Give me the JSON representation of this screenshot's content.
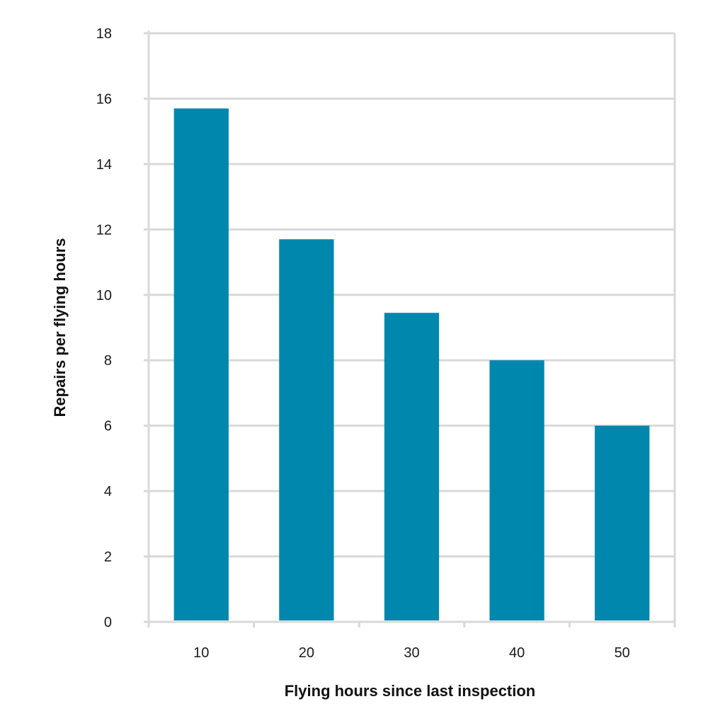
{
  "chart_data": {
    "type": "bar",
    "categories": [
      "10",
      "20",
      "30",
      "40",
      "50"
    ],
    "values": [
      15.7,
      11.7,
      9.45,
      8.0,
      6.0
    ],
    "title": "",
    "xlabel": "Flying hours since last inspection",
    "ylabel": "Repairs per flying hours",
    "ylim": [
      0,
      18
    ],
    "yticks": [
      "0",
      "2",
      "4",
      "6",
      "8",
      "10",
      "12",
      "14",
      "16",
      "18"
    ],
    "grid": true,
    "legend": "none"
  },
  "colors": {
    "bar": "#0087ad",
    "grid": "#d9d9d9",
    "axis": "#d9d9d9",
    "text": "#1a1a1a"
  }
}
